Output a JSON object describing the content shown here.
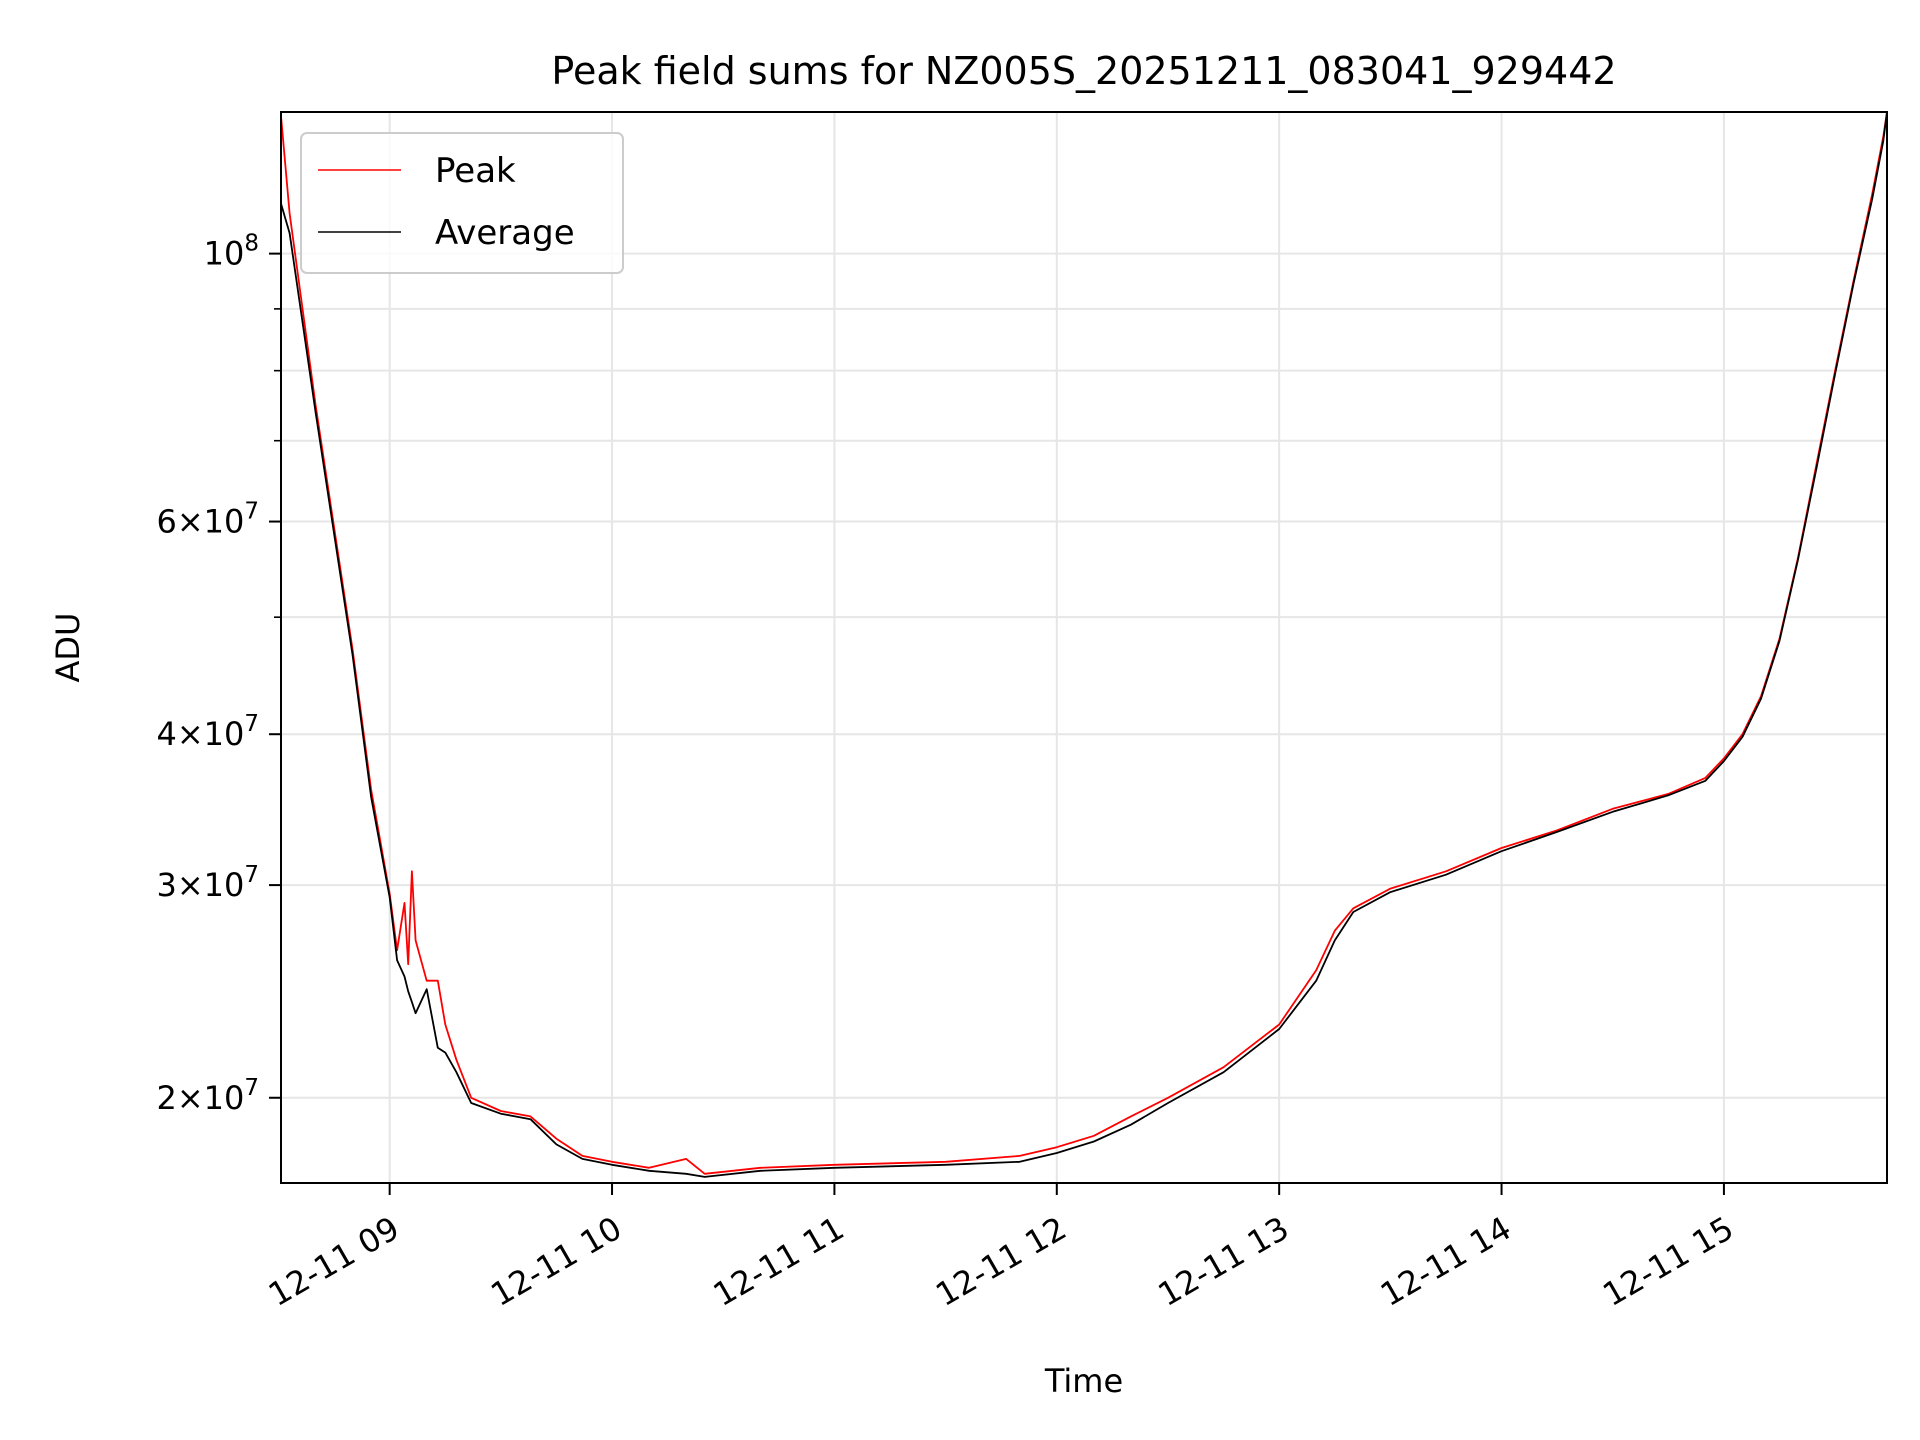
{
  "chart_data": {
    "type": "line",
    "title": "Peak field sums for NZ005S_20251211_083041_929442",
    "xlabel": "Time",
    "ylabel": "ADU",
    "yscale": "log",
    "grid": true,
    "legend_position": "upper-left",
    "xlim": [
      "2025-12-11 08:30:41",
      "2025-12-11 15:44"
    ],
    "ylim": [
      17000000,
      131000000
    ],
    "x_tick_labels": [
      "12-11 09",
      "12-11 10",
      "12-11 11",
      "12-11 12",
      "12-11 13",
      "12-11 14",
      "12-11 15"
    ],
    "x_ticks": [
      "2025-12-11 09:00",
      "2025-12-11 10:00",
      "2025-12-11 11:00",
      "2025-12-11 12:00",
      "2025-12-11 13:00",
      "2025-12-11 14:00",
      "2025-12-11 15:00"
    ],
    "y_tick_labels": [
      {
        "value": 20000000,
        "mantissa": "2",
        "exponent": "7"
      },
      {
        "value": 30000000,
        "mantissa": "3",
        "exponent": "7"
      },
      {
        "value": 40000000,
        "mantissa": "4",
        "exponent": "7"
      },
      {
        "value": 60000000,
        "mantissa": "6",
        "exponent": "7"
      },
      {
        "value": 100000000,
        "mantissa": "",
        "exponent": "8"
      }
    ],
    "y_minor_ticks": [
      50000000,
      70000000,
      80000000,
      90000000
    ],
    "series": [
      {
        "name": "Peak",
        "color": "#ff0000",
        "x": [
          "2025-12-11 08:30:41",
          "2025-12-11 08:33",
          "2025-12-11 08:40",
          "2025-12-11 08:50",
          "2025-12-11 08:55",
          "2025-12-11 09:00",
          "2025-12-11 09:02",
          "2025-12-11 09:04",
          "2025-12-11 09:05",
          "2025-12-11 09:06",
          "2025-12-11 09:07",
          "2025-12-11 09:10",
          "2025-12-11 09:13",
          "2025-12-11 09:15",
          "2025-12-11 09:18",
          "2025-12-11 09:22",
          "2025-12-11 09:30",
          "2025-12-11 09:38",
          "2025-12-11 09:45",
          "2025-12-11 09:52",
          "2025-12-11 10:00",
          "2025-12-11 10:10",
          "2025-12-11 10:20",
          "2025-12-11 10:25",
          "2025-12-11 10:40",
          "2025-12-11 11:00",
          "2025-12-11 11:30",
          "2025-12-11 11:50",
          "2025-12-11 12:00",
          "2025-12-11 12:10",
          "2025-12-11 12:20",
          "2025-12-11 12:30",
          "2025-12-11 12:45",
          "2025-12-11 13:00",
          "2025-12-11 13:10",
          "2025-12-11 13:15",
          "2025-12-11 13:20",
          "2025-12-11 13:30",
          "2025-12-11 13:45",
          "2025-12-11 14:00",
          "2025-12-11 14:15",
          "2025-12-11 14:30",
          "2025-12-11 14:45",
          "2025-12-11 14:55",
          "2025-12-11 15:00",
          "2025-12-11 15:05",
          "2025-12-11 15:10",
          "2025-12-11 15:15",
          "2025-12-11 15:20",
          "2025-12-11 15:25",
          "2025-12-11 15:30",
          "2025-12-11 15:35",
          "2025-12-11 15:40",
          "2025-12-11 15:43",
          "2025-12-11 15:44"
        ],
        "values": [
          130000000,
          108000000,
          75000000,
          47000000,
          36000000,
          29500000,
          26500000,
          29000000,
          25800000,
          30800000,
          27000000,
          25000000,
          25000000,
          23000000,
          21500000,
          20000000,
          19500000,
          19300000,
          18500000,
          17900000,
          17700000,
          17500000,
          17800000,
          17300000,
          17500000,
          17600000,
          17700000,
          17900000,
          18200000,
          18600000,
          19300000,
          20000000,
          21200000,
          23000000,
          25500000,
          27500000,
          28700000,
          29800000,
          30800000,
          32200000,
          33300000,
          34700000,
          35700000,
          36800000,
          38200000,
          40000000,
          43000000,
          48000000,
          56000000,
          67000000,
          80000000,
          95000000,
          112000000,
          125000000,
          131000000
        ]
      },
      {
        "name": "Average",
        "color": "#000000",
        "x": [
          "2025-12-11 08:30:41",
          "2025-12-11 08:33",
          "2025-12-11 08:40",
          "2025-12-11 08:50",
          "2025-12-11 08:55",
          "2025-12-11 09:00",
          "2025-12-11 09:02",
          "2025-12-11 09:04",
          "2025-12-11 09:05",
          "2025-12-11 09:06",
          "2025-12-11 09:07",
          "2025-12-11 09:10",
          "2025-12-11 09:13",
          "2025-12-11 09:15",
          "2025-12-11 09:18",
          "2025-12-11 09:22",
          "2025-12-11 09:30",
          "2025-12-11 09:38",
          "2025-12-11 09:45",
          "2025-12-11 09:52",
          "2025-12-11 10:00",
          "2025-12-11 10:10",
          "2025-12-11 10:20",
          "2025-12-11 10:25",
          "2025-12-11 10:40",
          "2025-12-11 11:00",
          "2025-12-11 11:30",
          "2025-12-11 11:50",
          "2025-12-11 12:00",
          "2025-12-11 12:10",
          "2025-12-11 12:20",
          "2025-12-11 12:30",
          "2025-12-11 12:45",
          "2025-12-11 13:00",
          "2025-12-11 13:10",
          "2025-12-11 13:15",
          "2025-12-11 13:20",
          "2025-12-11 13:30",
          "2025-12-11 13:45",
          "2025-12-11 14:00",
          "2025-12-11 14:15",
          "2025-12-11 14:30",
          "2025-12-11 14:45",
          "2025-12-11 14:55",
          "2025-12-11 15:00",
          "2025-12-11 15:05",
          "2025-12-11 15:10",
          "2025-12-11 15:15",
          "2025-12-11 15:20",
          "2025-12-11 15:25",
          "2025-12-11 15:30",
          "2025-12-11 15:35",
          "2025-12-11 15:40",
          "2025-12-11 15:43",
          "2025-12-11 15:44"
        ],
        "values": [
          110000000,
          104000000,
          74000000,
          46500000,
          35500000,
          29300000,
          26000000,
          25200000,
          24500000,
          24000000,
          23500000,
          24600000,
          22000000,
          21800000,
          21000000,
          19800000,
          19400000,
          19200000,
          18300000,
          17800000,
          17600000,
          17400000,
          17300000,
          17200000,
          17400000,
          17500000,
          17600000,
          17700000,
          18000000,
          18400000,
          19000000,
          19800000,
          21000000,
          22800000,
          25000000,
          27000000,
          28500000,
          29600000,
          30600000,
          32000000,
          33200000,
          34500000,
          35600000,
          36600000,
          38000000,
          39800000,
          42800000,
          47800000,
          55800000,
          66500000,
          79500000,
          94500000,
          111000000,
          124000000,
          131000000
        ]
      }
    ]
  }
}
